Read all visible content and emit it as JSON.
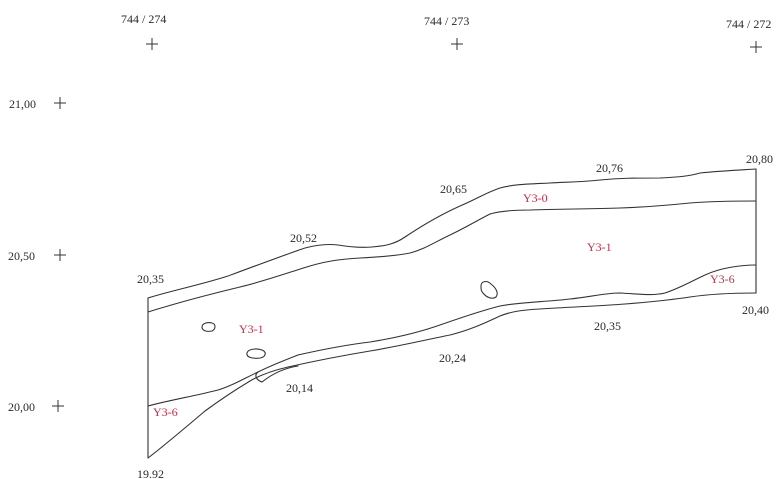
{
  "grid_points": [
    {
      "label": "744 / 274"
    },
    {
      "label": "744 / 273"
    },
    {
      "label": "744 / 272"
    }
  ],
  "elevation_marks": [
    {
      "label": "21,00"
    },
    {
      "label": "20,50"
    },
    {
      "label": "20,00"
    }
  ],
  "level_labels": [
    {
      "text": "20,35"
    },
    {
      "text": "20,52"
    },
    {
      "text": "20,65"
    },
    {
      "text": "20,76"
    },
    {
      "text": "20,80"
    },
    {
      "text": "20,40"
    },
    {
      "text": "20,35"
    },
    {
      "text": "20,24"
    },
    {
      "text": "20,14"
    },
    {
      "text": "19.92"
    }
  ],
  "layer_labels": [
    {
      "text": "Y3-0"
    },
    {
      "text": "Y3-1"
    },
    {
      "text": "Y3-1"
    },
    {
      "text": "Y3-6"
    },
    {
      "text": "Y3-6"
    }
  ],
  "colors": {
    "ink": "#333333",
    "text": "#2a2a2a",
    "layer_label": "#c0314a",
    "background": "#ffffff"
  }
}
